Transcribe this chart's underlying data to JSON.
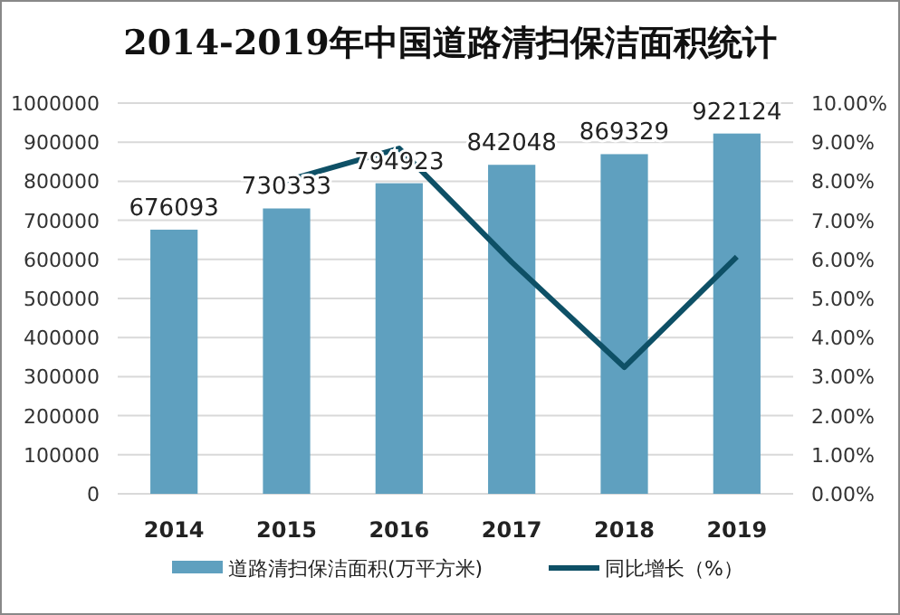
{
  "chart_data": {
    "type": "bar",
    "title": "2014-2019年中国道路清扫保洁面积统计",
    "categories": [
      "2014",
      "2015",
      "2016",
      "2017",
      "2018",
      "2019"
    ],
    "series": [
      {
        "name": "道路清扫保洁面积(万平方米)",
        "color": "#5fa0bf",
        "values": [
          676093,
          730333,
          794923,
          842048,
          869329,
          922124
        ],
        "value_labels": [
          "676093",
          "730333",
          "794923",
          "842048",
          "869329",
          "922124"
        ]
      },
      {
        "name": "同比增长（%）",
        "type": "line",
        "axis": "y2",
        "color": "#0e5066",
        "values": [
          null,
          8.02,
          8.84,
          5.93,
          3.24,
          6.07
        ]
      }
    ],
    "ylim": [
      0,
      1000000
    ],
    "yticks": [
      0,
      100000,
      200000,
      300000,
      400000,
      500000,
      600000,
      700000,
      800000,
      900000,
      1000000
    ],
    "y2lim": [
      0,
      10
    ],
    "y2ticks": [
      {
        "value": 0,
        "label": "0.00%"
      },
      {
        "value": 1,
        "label": "1.00%"
      },
      {
        "value": 2,
        "label": "2.00%"
      },
      {
        "value": 3,
        "label": "3.00%"
      },
      {
        "value": 4,
        "label": "4.00%"
      },
      {
        "value": 5,
        "label": "5.00%"
      },
      {
        "value": 6,
        "label": "6.00%"
      },
      {
        "value": 7,
        "label": "7.00%"
      },
      {
        "value": 8,
        "label": "8.00%"
      },
      {
        "value": 9,
        "label": "9.00%"
      },
      {
        "value": 10,
        "label": "10.00%"
      }
    ],
    "grid": "y",
    "legend": "bottom",
    "marker": "none",
    "line_style": "solid"
  }
}
